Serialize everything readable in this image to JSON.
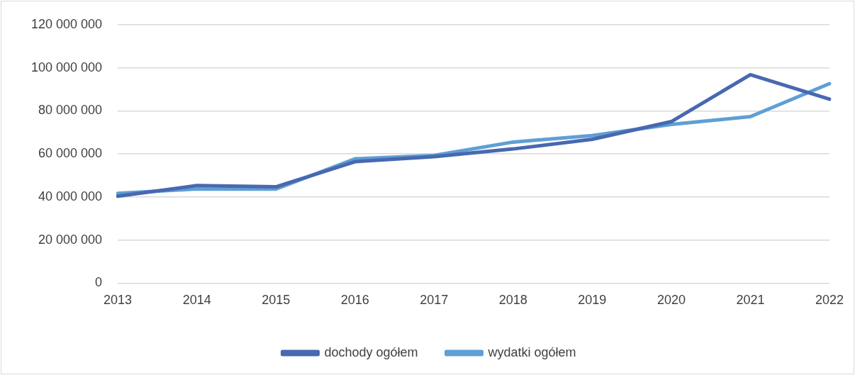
{
  "chart_data": {
    "type": "line",
    "categories": [
      "2013",
      "2014",
      "2015",
      "2016",
      "2017",
      "2018",
      "2019",
      "2020",
      "2021",
      "2022"
    ],
    "series": [
      {
        "name": "dochody ogółem",
        "color": "#4868b0",
        "values": [
          40400000,
          45300000,
          44700000,
          56400000,
          58700000,
          62300000,
          66800000,
          75000000,
          96800000,
          85400000
        ]
      },
      {
        "name": "wydatki ogółem",
        "color": "#5f9fd4",
        "values": [
          41700000,
          43700000,
          43700000,
          57700000,
          59300000,
          65500000,
          68500000,
          73700000,
          77300000,
          92600000
        ]
      }
    ],
    "ylim": [
      0,
      120000000
    ],
    "yticks": [
      {
        "value": 0,
        "label": "0"
      },
      {
        "value": 20000000,
        "label": "20 000 000"
      },
      {
        "value": 40000000,
        "label": "40 000 000"
      },
      {
        "value": 60000000,
        "label": "60 000 000"
      },
      {
        "value": 80000000,
        "label": "80 000 000"
      },
      {
        "value": 100000000,
        "label": "100 000 000"
      },
      {
        "value": 120000000,
        "label": "120 000 000"
      }
    ],
    "grid": "y",
    "legend": "bottom",
    "marker": "none",
    "line_style": "solid"
  }
}
